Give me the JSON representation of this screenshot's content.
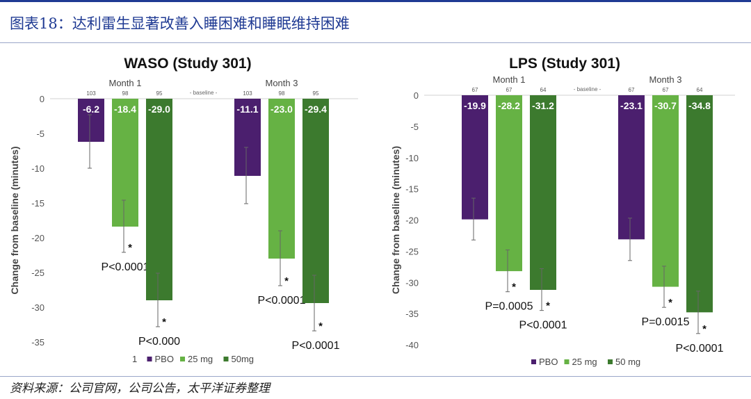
{
  "figure": {
    "title": "图表18：达利雷生显著改善入睡困难和睡眠维持困难",
    "source": "资料来源：公司官网，公司公告，太平洋证券整理"
  },
  "colors": {
    "PBO": "#4b1f6e",
    "25 mg": "#66b244",
    "50mg": "#3c7a2e",
    "50 mg": "#3c7a2e",
    "accent": "#1f3a93"
  },
  "chart_data": [
    {
      "type": "bar",
      "title": "WASO (Study 301)",
      "ylabel": "Change from baseline (minutes)",
      "ylim": [
        -35,
        0
      ],
      "yticks": [
        0,
        -5,
        -10,
        -15,
        -20,
        -25,
        -30,
        -35
      ],
      "grid": false,
      "legend_position": "bottom",
      "legend": [
        "1",
        "PBO",
        "25 mg",
        "50mg"
      ],
      "baseline_label": "- baseline -",
      "groups": [
        {
          "label": "Month 1",
          "bars": [
            {
              "series": "PBO",
              "value": -6.2,
              "label": "-6.2",
              "n": "103",
              "err_low": -10.0,
              "err_high": -2.3,
              "star": "",
              "p": ""
            },
            {
              "series": "25 mg",
              "value": -18.4,
              "label": "-18.4",
              "n": "98",
              "err_low": -22.1,
              "err_high": -14.6,
              "star": "*",
              "p": "P<0.0001"
            },
            {
              "series": "50mg",
              "value": -29.0,
              "label": "-29.0",
              "n": "95",
              "err_low": -32.8,
              "err_high": -25.1,
              "star": "*",
              "p": "P<0.000"
            }
          ]
        },
        {
          "label": "Month 3",
          "bars": [
            {
              "series": "PBO",
              "value": -11.1,
              "label": "-11.1",
              "n": "103",
              "err_low": -15.1,
              "err_high": -7.0,
              "star": "",
              "p": ""
            },
            {
              "series": "25 mg",
              "value": -23.0,
              "label": "-23.0",
              "n": "98",
              "err_low": -26.9,
              "err_high": -19.0,
              "star": "*",
              "p": "P<0.0001"
            },
            {
              "series": "50mg",
              "value": -29.4,
              "label": "-29.4",
              "n": "95",
              "err_low": -33.4,
              "err_high": -25.4,
              "star": "*",
              "p": "P<0.0001"
            }
          ]
        }
      ]
    },
    {
      "type": "bar",
      "title": "LPS (Study 301)",
      "ylabel": "Change from baseline (minutes)",
      "ylim": [
        -40,
        0
      ],
      "yticks": [
        0,
        -5,
        -10,
        -15,
        -20,
        -25,
        -30,
        -35,
        -40
      ],
      "grid": false,
      "legend_position": "bottom",
      "legend": [
        "PBO",
        "25 mg",
        "50 mg"
      ],
      "baseline_label": "- baseline -",
      "groups": [
        {
          "label": "Month 1",
          "bars": [
            {
              "series": "PBO",
              "value": -19.9,
              "label": "-19.9",
              "n": "67",
              "err_low": -23.2,
              "err_high": -16.5,
              "star": "",
              "p": ""
            },
            {
              "series": "25 mg",
              "value": -28.2,
              "label": "-28.2",
              "n": "67",
              "err_low": -31.5,
              "err_high": -24.8,
              "star": "*",
              "p": "P=0.0005"
            },
            {
              "series": "50 mg",
              "value": -31.2,
              "label": "-31.2",
              "n": "64",
              "err_low": -34.5,
              "err_high": -27.8,
              "star": "*",
              "p": "P<0.0001"
            }
          ]
        },
        {
          "label": "Month 3",
          "bars": [
            {
              "series": "PBO",
              "value": -23.1,
              "label": "-23.1",
              "n": "67",
              "err_low": -26.5,
              "err_high": -19.7,
              "star": "",
              "p": ""
            },
            {
              "series": "25 mg",
              "value": -30.7,
              "label": "-30.7",
              "n": "67",
              "err_low": -34.0,
              "err_high": -27.4,
              "star": "*",
              "p": "P=0.0015"
            },
            {
              "series": "50 mg",
              "value": -34.8,
              "label": "-34.8",
              "n": "64",
              "err_low": -38.2,
              "err_high": -31.4,
              "star": "*",
              "p": "P<0.0001"
            }
          ]
        }
      ]
    }
  ]
}
